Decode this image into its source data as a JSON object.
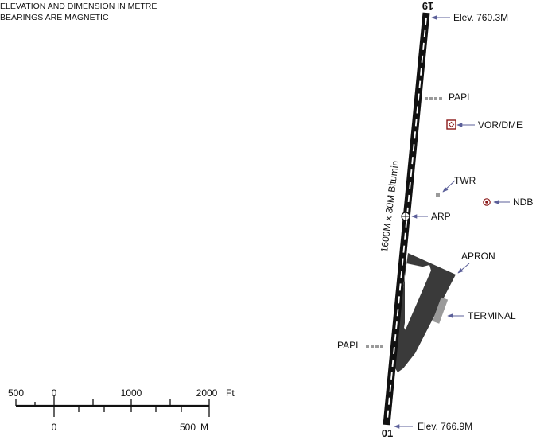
{
  "notes": {
    "line1": "ELEVATION AND DIMENSION IN METRE",
    "line2": "BEARINGS ARE MAGNETIC"
  },
  "runway": {
    "dimension_label": "1600M x 30M Bitumin",
    "north_designator": "19",
    "south_designator": "01",
    "north_elevation": "Elev. 760.3M",
    "south_elevation": "Elev. 766.9M"
  },
  "facilities": {
    "papi_north": "PAPI",
    "papi_south": "PAPI",
    "vor_dme": "VOR/DME",
    "twr": "TWR",
    "ndb": "NDB",
    "arp": "ARP",
    "apron": "APRON",
    "terminal": "TERMINAL"
  },
  "scale_bar": {
    "feet_labels": [
      "500",
      "0",
      "1000",
      "2000"
    ],
    "feet_unit": "Ft",
    "metre_labels": [
      "0",
      "500"
    ],
    "metre_unit": "M"
  },
  "colors": {
    "runway": "#111111",
    "apron": "#3a3a3a",
    "arrow": "#5b5f99",
    "marker": "#9a9a9a",
    "navaid": "#8b1a1a"
  }
}
